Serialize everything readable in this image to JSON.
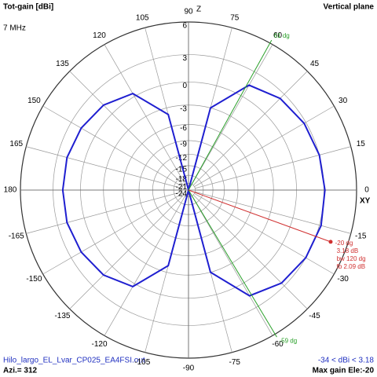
{
  "chart_data": {
    "type": "polar",
    "title": "Tot-gain [dBi]",
    "subtitle": "Vertical plane",
    "frequency": "7 MHz",
    "z_label": "Z",
    "xy_label": "XY",
    "file": "Hilo_largo_EL_Lvar_CP025_EA4FSI.out",
    "azimuth": "Azi.= 312",
    "range_text": "-34 < dBi < 3.18",
    "max_gain_text": "Max gain Ele:-20",
    "radial_scale": "arrl",
    "rlim": [
      -24,
      6
    ],
    "rticks": [
      6,
      3,
      0,
      -3,
      -6,
      -9,
      -12,
      -15,
      -18,
      -21,
      -24
    ],
    "angle_ticks": [
      0,
      15,
      30,
      45,
      60,
      75,
      90,
      105,
      120,
      135,
      150,
      165,
      180,
      -165,
      -150,
      -135,
      -120,
      -105,
      -90,
      -75,
      -60,
      -45,
      -30,
      -15
    ],
    "series": [
      {
        "color": "#1f1fd0",
        "x": [
          -90,
          -75,
          -60,
          -45,
          -30,
          -15,
          0,
          15,
          30,
          45,
          60,
          75,
          90,
          105,
          120,
          135,
          150,
          165,
          180,
          -165,
          -150,
          -135,
          -120,
          -105
        ],
        "values": [
          -24,
          -3,
          1.6,
          2.6,
          3.0,
          3.18,
          3.1,
          3.0,
          2.8,
          2.4,
          1.5,
          -3,
          -24,
          -4,
          0.4,
          1.4,
          1.8,
          2.0,
          2.0,
          2.0,
          1.8,
          1.4,
          0.4,
          -4
        ]
      }
    ],
    "cursors": [
      {
        "angle": 61,
        "label": "61 dg",
        "color": "#2aa02a"
      },
      {
        "angle": -59,
        "label": "-59 dg",
        "color": "#2aa02a"
      },
      {
        "angle": -20,
        "label": "-20 dg",
        "color": "#d03030"
      }
    ],
    "cursor_info": [
      "3.18 dB",
      "bw 120 dg",
      "fb 2.09 dB"
    ]
  }
}
